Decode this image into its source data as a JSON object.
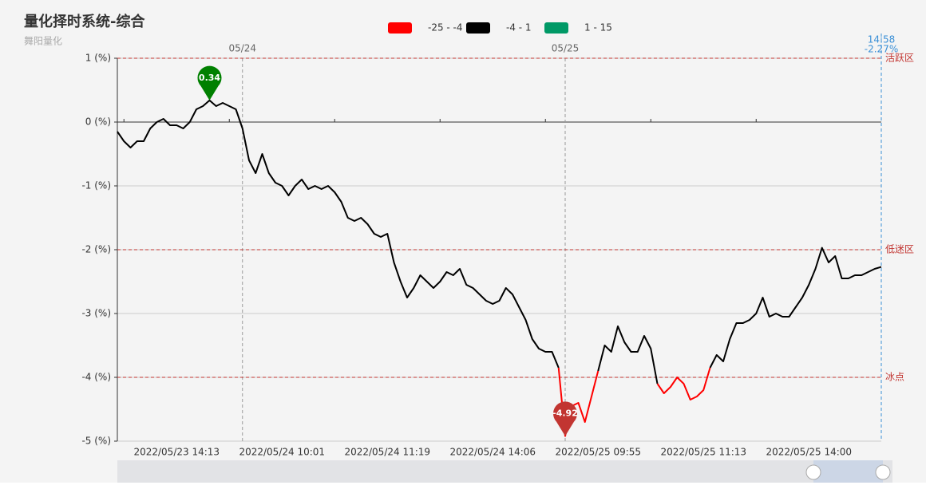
{
  "chart_data": {
    "type": "line",
    "title": "量化择时系统-综合",
    "subtitle": "舞阳量化",
    "pieces": [
      {
        "min": -25,
        "max": -4,
        "color": "#ff0000",
        "label": "-25 - -4"
      },
      {
        "min": -4,
        "max": 1,
        "color": "#000000",
        "label": "-4 - 1"
      },
      {
        "min": 1,
        "max": 15,
        "color": "#009966",
        "label": "1 - 15"
      }
    ],
    "categories": [
      null,
      null,
      null,
      null,
      null,
      null,
      null,
      null,
      null,
      "2022/05/23 14:13",
      null,
      null,
      null,
      null,
      null,
      null,
      null,
      null,
      null,
      null,
      null,
      null,
      null,
      null,
      null,
      "2022/05/24 10:01",
      null,
      null,
      null,
      null,
      null,
      null,
      null,
      null,
      null,
      null,
      null,
      null,
      null,
      null,
      null,
      "2022/05/24 11:19",
      null,
      null,
      null,
      null,
      null,
      null,
      null,
      null,
      null,
      null,
      null,
      null,
      null,
      null,
      null,
      "2022/05/24 14:06",
      null,
      null,
      null,
      null,
      null,
      null,
      null,
      null,
      null,
      null,
      null,
      null,
      null,
      null,
      null,
      "2022/05/25 09:55",
      null,
      null,
      null,
      null,
      null,
      null,
      null,
      null,
      null,
      null,
      null,
      null,
      null,
      null,
      null,
      "2022/05/25 11:13",
      null,
      null,
      null,
      null,
      null,
      null,
      null,
      null,
      null,
      null,
      null,
      null,
      null,
      null,
      null,
      "2022/05/25 14:00",
      null,
      null,
      null,
      null,
      null,
      null,
      null,
      null,
      null,
      null,
      null
    ],
    "day_labels": [
      null,
      null,
      null,
      null,
      null,
      null,
      null,
      null,
      null,
      null,
      null,
      null,
      null,
      null,
      null,
      null,
      null,
      null,
      null,
      "05/24",
      null,
      null,
      null,
      null,
      null,
      null,
      null,
      null,
      null,
      null,
      null,
      null,
      null,
      null,
      null,
      null,
      null,
      null,
      null,
      null,
      null,
      null,
      null,
      null,
      null,
      null,
      null,
      null,
      null,
      null,
      null,
      null,
      null,
      null,
      null,
      null,
      null,
      null,
      null,
      null,
      null,
      null,
      null,
      null,
      null,
      null,
      null,
      null,
      "05/25",
      null,
      null,
      null,
      null,
      null,
      null,
      null,
      null,
      null,
      null,
      null,
      null,
      null,
      null,
      null,
      null,
      null,
      null,
      null,
      null,
      null,
      null,
      null,
      null,
      null,
      null,
      null,
      null,
      null,
      null,
      null,
      null,
      null,
      null,
      null,
      null,
      null,
      null,
      null,
      null,
      null,
      null,
      null,
      null,
      null,
      null,
      null,
      null
    ],
    "series": [
      {
        "values": [
          -0.15,
          -0.3,
          -0.4,
          -0.3,
          -0.3,
          -0.1,
          0.0,
          0.05,
          -0.05,
          -0.05,
          -0.1,
          0.0,
          0.2,
          0.25,
          0.34,
          0.25,
          0.3,
          0.25,
          0.2,
          -0.1,
          -0.6,
          -0.8,
          -0.5,
          -0.8,
          -0.95,
          -1.0,
          -1.15,
          -1.0,
          -0.9,
          -1.05,
          -1.0,
          -1.05,
          -1.0,
          -1.1,
          -1.25,
          -1.5,
          -1.55,
          -1.5,
          -1.6,
          -1.75,
          -1.8,
          -1.75,
          -2.2,
          -2.5,
          -2.75,
          -2.6,
          -2.4,
          -2.5,
          -2.6,
          -2.5,
          -2.35,
          -2.4,
          -2.3,
          -2.55,
          -2.6,
          -2.7,
          -2.8,
          -2.85,
          -2.8,
          -2.6,
          -2.7,
          -2.9,
          -3.1,
          -3.4,
          -3.55,
          -3.6,
          -3.6,
          -3.85,
          -4.92,
          -4.45,
          -4.4,
          -4.7,
          -4.3,
          -3.9,
          -3.5,
          -3.6,
          -3.2,
          -3.45,
          -3.6,
          -3.6,
          -3.35,
          -3.55,
          -4.1,
          -4.25,
          -4.15,
          -4.0,
          -4.1,
          -4.35,
          -4.3,
          -4.2,
          -3.85,
          -3.65,
          -3.75,
          -3.4,
          -3.15,
          -3.15,
          -3.1,
          -3.0,
          -2.75,
          -3.05,
          -3.0,
          -3.05,
          -3.05,
          -2.9,
          -2.75,
          -2.55,
          -2.3,
          -1.97,
          -2.2,
          -2.1,
          -2.45,
          -2.45,
          -2.4,
          -2.4,
          -2.35,
          -2.3,
          -2.27
        ],
        "value_labels": [
          null,
          null,
          null,
          null,
          null,
          null,
          null,
          null,
          null,
          null,
          null,
          null,
          null,
          null,
          null,
          null,
          null,
          null,
          null,
          null,
          null,
          null,
          null,
          null,
          null,
          null,
          null,
          null,
          null,
          null,
          null,
          null,
          null,
          null,
          null,
          null,
          null,
          null,
          null,
          null,
          null,
          null,
          null,
          null,
          null,
          null,
          null,
          null,
          null,
          null,
          null,
          null,
          null,
          null,
          null,
          null,
          null,
          null,
          null,
          null,
          null,
          null,
          null,
          null,
          null,
          null,
          null,
          null,
          null,
          null,
          null,
          null,
          null,
          null,
          null,
          null,
          null,
          null,
          null,
          null,
          null,
          null,
          null,
          null,
          null,
          null,
          null,
          null,
          null,
          null,
          null,
          null,
          null,
          null,
          null,
          null,
          null,
          null,
          null,
          null,
          null,
          null,
          null,
          null,
          null,
          null,
          null,
          null,
          null,
          null,
          null,
          null,
          null,
          null,
          null,
          null,
          "-2.27%"
        ]
      }
    ],
    "end_time": "14:58",
    "max_color": "#008000",
    "min_color": "#c23531",
    "mark_lines": [
      {
        "value": 1,
        "label": "活跃区"
      },
      {
        "value": -2,
        "label": "低迷区"
      },
      {
        "value": -4,
        "label": "冰点"
      }
    ],
    "ylim": [
      -5,
      1
    ],
    "yticks": [
      {
        "value": -5,
        "label": "-5 (%)"
      },
      {
        "value": -4,
        "label": "-4 (%)"
      },
      {
        "value": -3,
        "label": "-3 (%)"
      },
      {
        "value": -2,
        "label": "-2 (%)"
      },
      {
        "value": -1,
        "label": "-1 (%)"
      },
      {
        "value": 0,
        "label": "0 (%)"
      },
      {
        "value": 1,
        "label": "1 (%)"
      }
    ],
    "grid": true
  }
}
